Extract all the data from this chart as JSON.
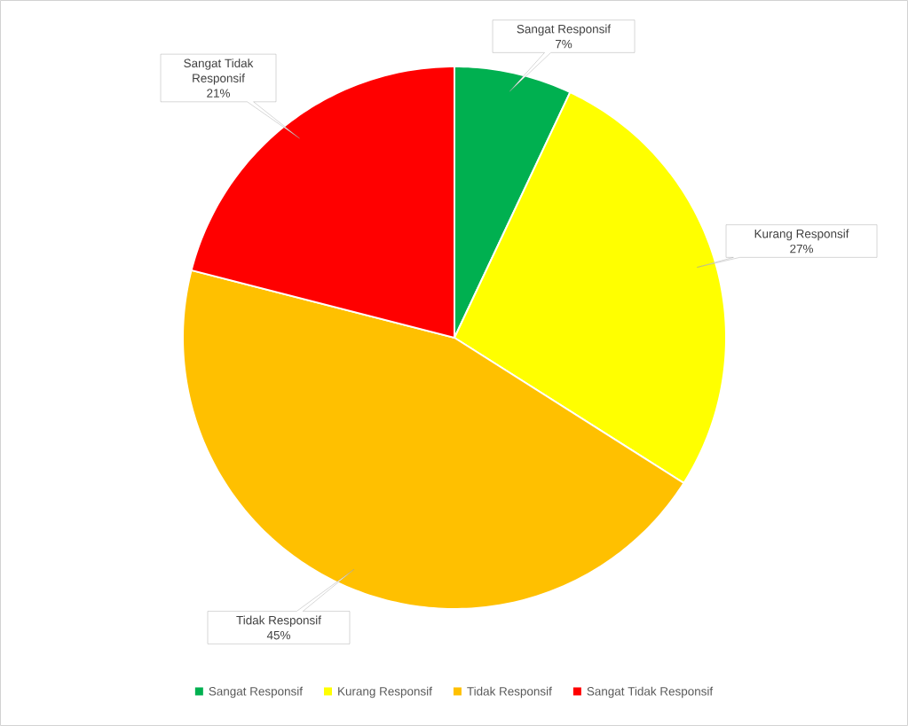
{
  "chart_data": {
    "type": "pie",
    "categories": [
      "Sangat Responsif",
      "Kurang Responsif",
      "Tidak Responsif",
      "Sangat Tidak Responsif"
    ],
    "values": [
      7,
      27,
      45,
      21
    ],
    "value_labels": [
      "7%",
      "27%",
      "45%",
      "21%"
    ],
    "colors": [
      "#00b050",
      "#ffff00",
      "#ffc000",
      "#ff0000"
    ],
    "legend": "bottom"
  }
}
